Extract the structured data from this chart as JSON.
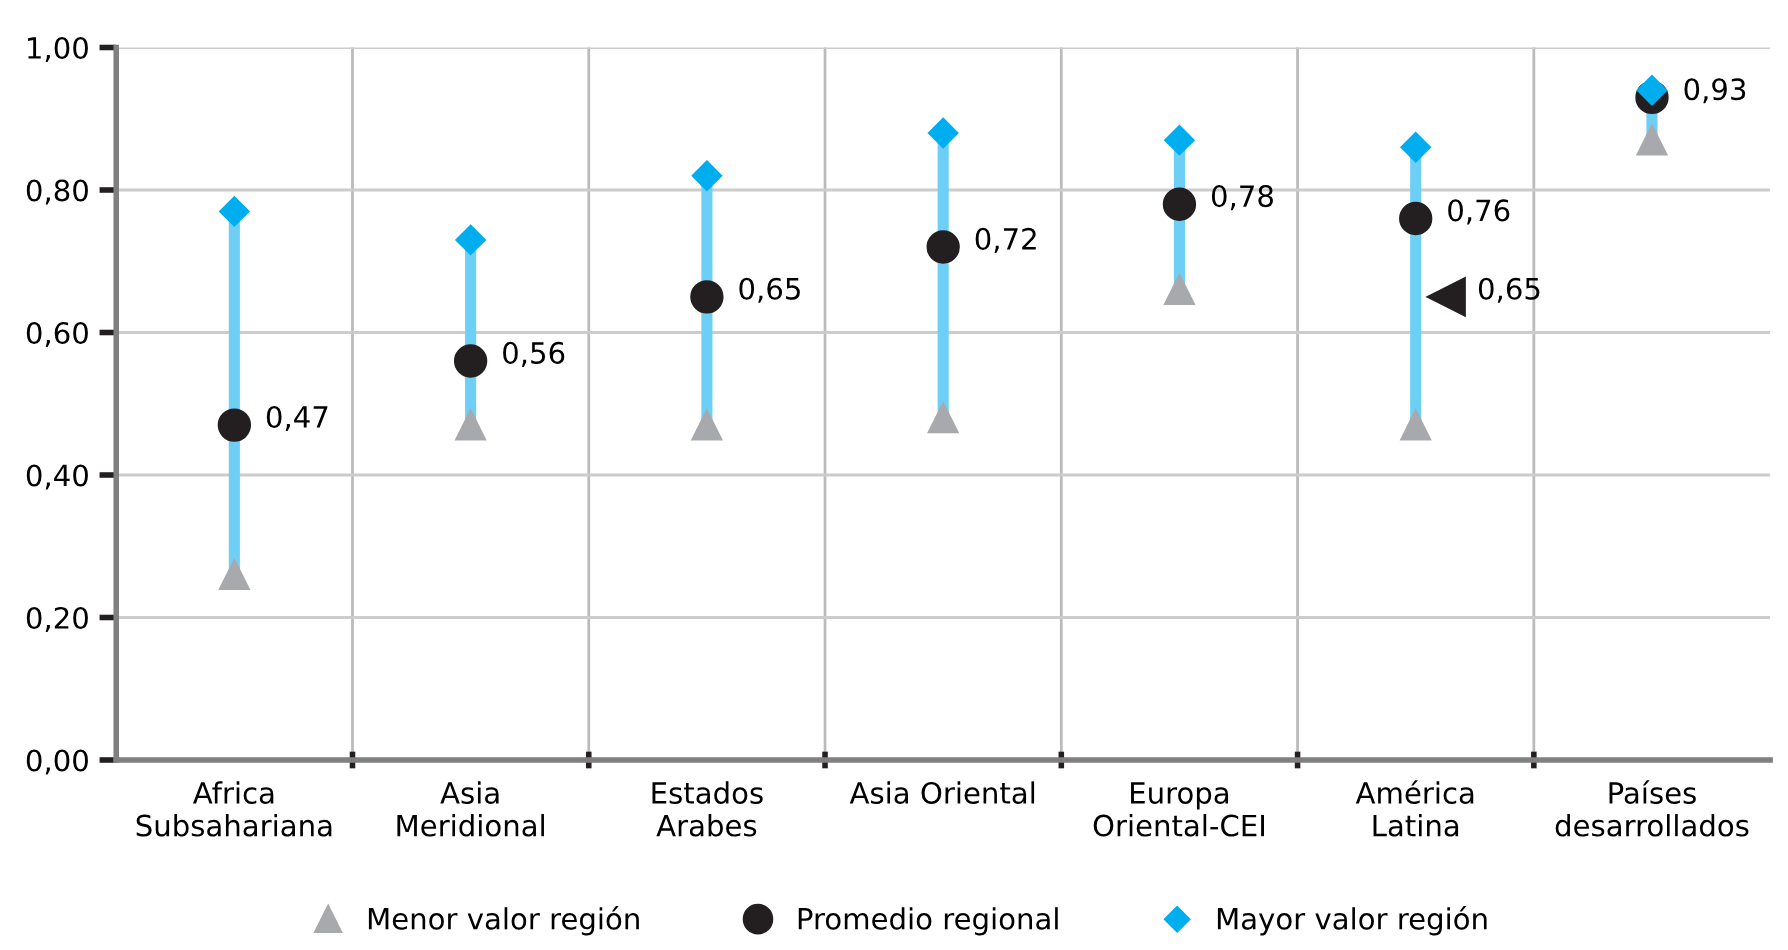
{
  "chart_data": {
    "type": "scatter",
    "categories": [
      "Africa\nSubsahariana",
      "Asia\nMeridional",
      "Estados\nArabes",
      "Asia Oriental",
      "Europa\nOriental-CEI",
      "América\nLatina",
      "Países\ndesarrollados"
    ],
    "series": [
      {
        "name": "Menor valor región",
        "color": "#a7a9ac",
        "marker": "triangle",
        "values": [
          0.26,
          0.47,
          0.47,
          0.48,
          0.66,
          0.47,
          0.87
        ]
      },
      {
        "name": "Promedio regional",
        "color": "#231f20",
        "marker": "circle",
        "values": [
          0.47,
          0.56,
          0.65,
          0.72,
          0.78,
          0.76,
          0.93
        ],
        "value_labels": [
          "0,47",
          "0,56",
          "0,65",
          "0,72",
          "0,78",
          "0,76",
          "0,93"
        ]
      },
      {
        "name": "Mayor valor región",
        "color": "#00aeef",
        "marker": "diamond",
        "values": [
          0.77,
          0.73,
          0.82,
          0.88,
          0.87,
          0.86,
          0.94
        ]
      },
      {
        "color": "#231f20",
        "marker": "triangle",
        "values": [
          null,
          null,
          null,
          null,
          null,
          0.65,
          null
        ],
        "value_labels": [
          null,
          null,
          null,
          null,
          null,
          "0,65",
          null
        ]
      }
    ],
    "ylim": [
      0,
      1
    ],
    "yticks": [
      {
        "value": 0,
        "label": "0,00"
      },
      {
        "value": 0.2,
        "label": "0,20"
      },
      {
        "value": 0.4,
        "label": "0,40"
      },
      {
        "value": 0.6,
        "label": "0,60"
      },
      {
        "value": 0.8,
        "label": "0,80"
      },
      {
        "value": 1,
        "label": "1,00"
      }
    ],
    "grid": true,
    "legend": "bottom"
  }
}
